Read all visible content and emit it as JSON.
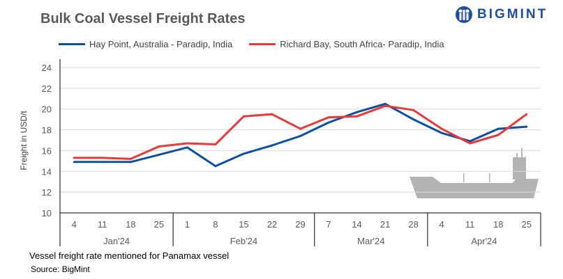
{
  "title": "Bulk Coal Vessel Freight Rates",
  "logo": {
    "text": "BIGMINT"
  },
  "note": "Vessel freight rate mentioned for Panamax  vessel",
  "source": "Source:  BigMint",
  "chart_data": {
    "type": "line",
    "title": "Bulk Coal Vessel Freight Rates",
    "ylabel": "Freight  in USD/t",
    "xlabel": "",
    "ylim": [
      10,
      24
    ],
    "yticks": [
      10,
      12,
      14,
      16,
      18,
      20,
      22,
      24
    ],
    "grid": true,
    "legend": "top",
    "x": [
      "4",
      "11",
      "18",
      "25",
      "1",
      "8",
      "15",
      "22",
      "29",
      "7",
      "14",
      "21",
      "28",
      "4",
      "11",
      "18",
      "25"
    ],
    "months": [
      {
        "label": "Jan'24",
        "count": 4
      },
      {
        "label": "Feb'24",
        "count": 5
      },
      {
        "label": "Mar'24",
        "count": 4
      },
      {
        "label": "Apr'24",
        "count": 4
      }
    ],
    "series": [
      {
        "name": "Hay Point, Australia - Paradip, India",
        "color": "#0d4fa0",
        "values": [
          14.9,
          14.9,
          14.9,
          15.6,
          16.3,
          14.5,
          15.7,
          16.5,
          17.4,
          18.7,
          19.7,
          20.5,
          19.0,
          17.7,
          16.9,
          18.1,
          18.3
        ]
      },
      {
        "name": "Richard Bay, South Africa- Paradip, India",
        "color": "#e83a3a",
        "values": [
          15.3,
          15.3,
          15.2,
          16.4,
          16.7,
          16.6,
          19.3,
          19.5,
          18.1,
          19.2,
          19.3,
          20.3,
          19.9,
          18.1,
          16.7,
          17.5,
          19.5
        ]
      }
    ]
  }
}
